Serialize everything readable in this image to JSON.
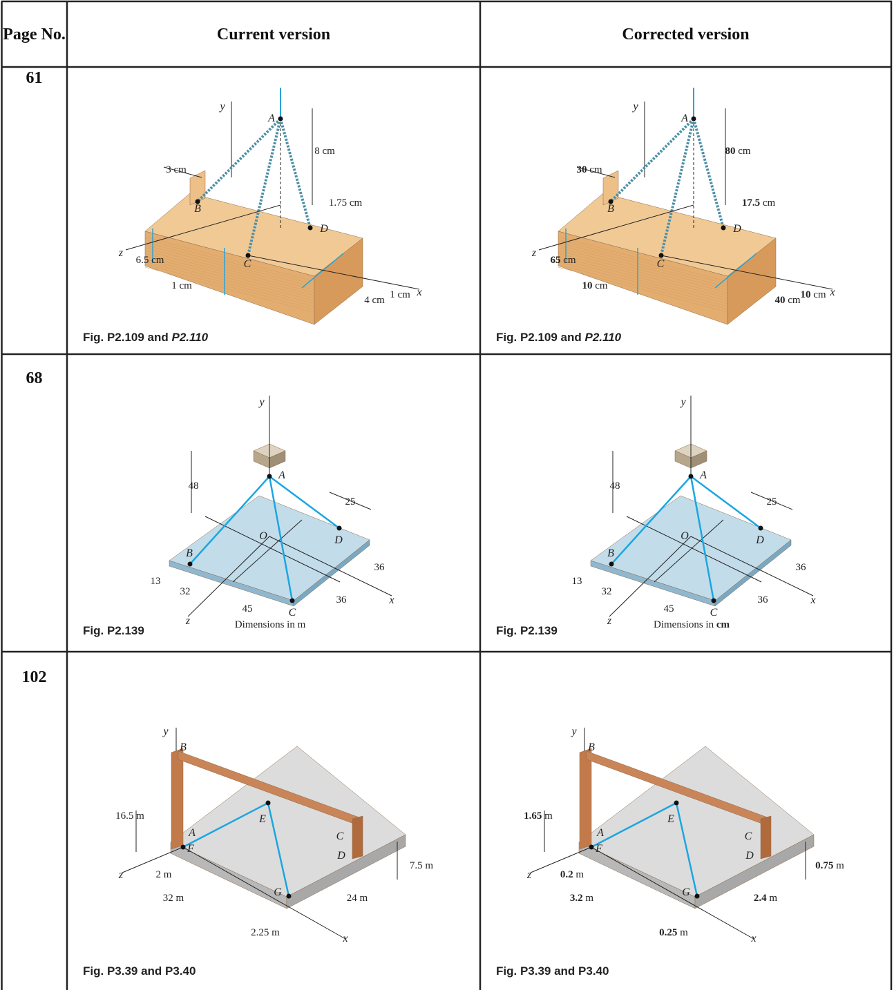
{
  "header": {
    "page_no": "Page No.",
    "current": "Current version",
    "corrected": "Corrected version"
  },
  "rows": [
    {
      "page": "61",
      "current": {
        "caption": {
          "text": "Fig. P2.109 and",
          "italic": "P2.110"
        },
        "points": [
          "y",
          "A",
          "B",
          "C",
          "D",
          "z",
          "x"
        ],
        "dims": [
          {
            "num": "3",
            "unit": "cm"
          },
          {
            "num": "8",
            "unit": "cm"
          },
          {
            "num": "1.75",
            "unit": "cm"
          },
          {
            "num": "6.5",
            "unit": "cm"
          },
          {
            "num": "1",
            "unit": "cm"
          },
          {
            "num": "4",
            "unit": "cm"
          },
          {
            "num": "1",
            "unit": "cm"
          }
        ]
      },
      "corrected": {
        "caption": {
          "text": "Fig. P2.109 and",
          "italic": "P2.110"
        },
        "bold_numbers": true,
        "points": [
          "y",
          "A",
          "B",
          "C",
          "D",
          "z",
          "x"
        ],
        "dims": [
          {
            "num": "30",
            "unit": "cm"
          },
          {
            "num": "80",
            "unit": "cm"
          },
          {
            "num": "17.5",
            "unit": "cm"
          },
          {
            "num": "65",
            "unit": "cm"
          },
          {
            "num": "10",
            "unit": "cm"
          },
          {
            "num": "40",
            "unit": "cm"
          },
          {
            "num": "10",
            "unit": "cm"
          }
        ]
      }
    },
    {
      "page": "68",
      "current": {
        "caption": {
          "text": "Fig. P2.139"
        },
        "points": [
          "y",
          "A",
          "O",
          "D",
          "B",
          "x",
          "C",
          "z"
        ],
        "dims": [
          "48",
          "25",
          "36",
          "13",
          "32",
          "36",
          "45"
        ],
        "note": {
          "text": "Dimensions in",
          "unit": "m"
        }
      },
      "corrected": {
        "caption": {
          "text": "Fig. P2.139"
        },
        "bold_unit": true,
        "points": [
          "y",
          "A",
          "O",
          "D",
          "B",
          "x",
          "C",
          "z"
        ],
        "dims": [
          "48",
          "25",
          "36",
          "13",
          "32",
          "36",
          "45"
        ],
        "note": {
          "text": "Dimensions in",
          "unit": "cm"
        }
      }
    },
    {
      "page": "102",
      "current": {
        "caption": {
          "text": "Fig. P3.39 and P3.40"
        },
        "points": [
          "y",
          "B",
          "E",
          "A",
          "C",
          "F",
          "D",
          "G",
          "z",
          "x"
        ],
        "dims": [
          {
            "num": "16.5",
            "unit": "m"
          },
          {
            "num": "7.5",
            "unit": "m"
          },
          {
            "num": "2",
            "unit": "m"
          },
          {
            "num": "32",
            "unit": "m"
          },
          {
            "num": "24",
            "unit": "m"
          },
          {
            "num": "2.25",
            "unit": "m"
          }
        ]
      },
      "corrected": {
        "caption": {
          "text": "Fig. P3.39 and P3.40"
        },
        "bold_numbers": true,
        "points": [
          "y",
          "B",
          "E",
          "A",
          "C",
          "F",
          "D",
          "G",
          "z",
          "x"
        ],
        "dims": [
          {
            "num": "1.65",
            "unit": "m"
          },
          {
            "num": "0.75",
            "unit": "m"
          },
          {
            "num": "0.2",
            "unit": "m"
          },
          {
            "num": "3.2",
            "unit": "m"
          },
          {
            "num": "2.4",
            "unit": "m"
          },
          {
            "num": "0.25",
            "unit": "m"
          }
        ]
      }
    }
  ]
}
